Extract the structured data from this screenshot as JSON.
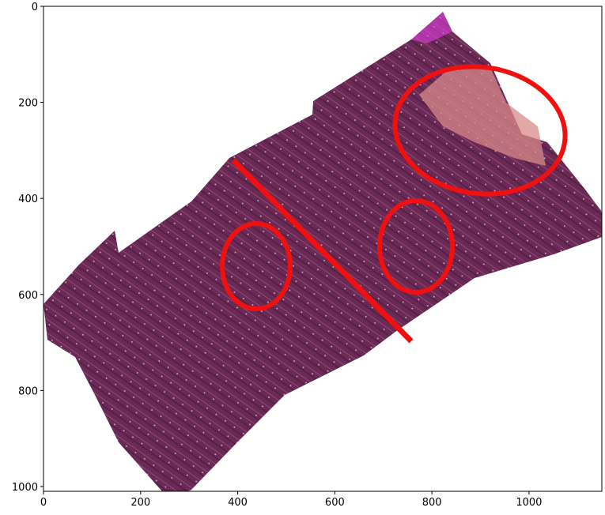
{
  "chart_data": {
    "type": "image",
    "xlim": [
      0,
      1150
    ],
    "xticks": [
      0,
      200,
      400,
      600,
      800,
      1000
    ],
    "ylim": [
      1010,
      0
    ],
    "yticks": [
      0,
      200,
      400,
      600,
      800,
      1000
    ]
  }
}
